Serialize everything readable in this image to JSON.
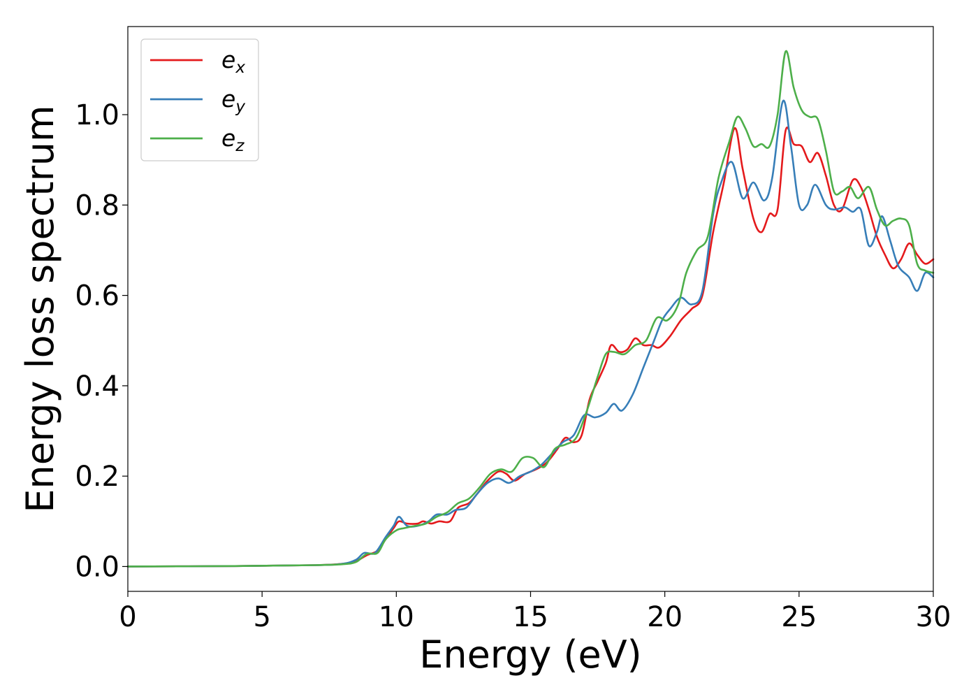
{
  "chart_data": {
    "type": "line",
    "xlabel": "Energy (eV)",
    "ylabel": "Energy loss spectrum",
    "xlim": [
      0,
      30
    ],
    "ylim": [
      -0.055,
      1.195
    ],
    "xticks": [
      0,
      5,
      10,
      15,
      20,
      25,
      30
    ],
    "xtick_labels": [
      "0",
      "5",
      "10",
      "15",
      "20",
      "25",
      "30"
    ],
    "yticks": [
      0.0,
      0.2,
      0.4,
      0.6,
      0.8,
      1.0
    ],
    "ytick_labels": [
      "0.0",
      "0.2",
      "0.4",
      "0.6",
      "0.8",
      "1.0"
    ],
    "grid": false,
    "legend": {
      "position": "upper-left"
    },
    "series": [
      {
        "name": "e",
        "subscript": "x",
        "color": "#e41a1c",
        "points": [
          [
            0,
            0
          ],
          [
            4,
            0.001
          ],
          [
            7,
            0.003
          ],
          [
            8,
            0.006
          ],
          [
            8.5,
            0.012
          ],
          [
            8.9,
            0.025
          ],
          [
            9.3,
            0.035
          ],
          [
            9.6,
            0.06
          ],
          [
            9.9,
            0.085
          ],
          [
            10.1,
            0.1
          ],
          [
            10.4,
            0.095
          ],
          [
            10.8,
            0.095
          ],
          [
            11,
            0.1
          ],
          [
            11.3,
            0.095
          ],
          [
            11.6,
            0.1
          ],
          [
            12,
            0.1
          ],
          [
            12.3,
            0.13
          ],
          [
            12.7,
            0.14
          ],
          [
            13,
            0.16
          ],
          [
            13.4,
            0.19
          ],
          [
            13.8,
            0.21
          ],
          [
            14.1,
            0.205
          ],
          [
            14.4,
            0.19
          ],
          [
            14.8,
            0.205
          ],
          [
            15.2,
            0.215
          ],
          [
            15.6,
            0.23
          ],
          [
            16,
            0.26
          ],
          [
            16.3,
            0.285
          ],
          [
            16.6,
            0.275
          ],
          [
            16.9,
            0.29
          ],
          [
            17.2,
            0.37
          ],
          [
            17.5,
            0.41
          ],
          [
            17.8,
            0.45
          ],
          [
            18,
            0.49
          ],
          [
            18.3,
            0.475
          ],
          [
            18.6,
            0.48
          ],
          [
            18.9,
            0.505
          ],
          [
            19.2,
            0.49
          ],
          [
            19.5,
            0.49
          ],
          [
            19.8,
            0.485
          ],
          [
            20.2,
            0.51
          ],
          [
            20.6,
            0.545
          ],
          [
            21,
            0.57
          ],
          [
            21.4,
            0.6
          ],
          [
            21.8,
            0.74
          ],
          [
            22.2,
            0.85
          ],
          [
            22.6,
            0.97
          ],
          [
            22.9,
            0.88
          ],
          [
            23.3,
            0.77
          ],
          [
            23.6,
            0.74
          ],
          [
            23.9,
            0.78
          ],
          [
            24.2,
            0.79
          ],
          [
            24.5,
            0.965
          ],
          [
            24.8,
            0.935
          ],
          [
            25.1,
            0.93
          ],
          [
            25.4,
            0.895
          ],
          [
            25.7,
            0.915
          ],
          [
            26,
            0.865
          ],
          [
            26.3,
            0.8
          ],
          [
            26.6,
            0.79
          ],
          [
            27,
            0.855
          ],
          [
            27.3,
            0.84
          ],
          [
            27.6,
            0.79
          ],
          [
            27.9,
            0.73
          ],
          [
            28.2,
            0.69
          ],
          [
            28.5,
            0.66
          ],
          [
            28.8,
            0.68
          ],
          [
            29.1,
            0.715
          ],
          [
            29.4,
            0.69
          ],
          [
            29.7,
            0.67
          ],
          [
            30,
            0.68
          ]
        ]
      },
      {
        "name": "e",
        "subscript": "y",
        "color": "#377eb8",
        "points": [
          [
            0,
            0
          ],
          [
            4,
            0.001
          ],
          [
            7,
            0.003
          ],
          [
            8,
            0.006
          ],
          [
            8.5,
            0.015
          ],
          [
            8.8,
            0.03
          ],
          [
            9.2,
            0.03
          ],
          [
            9.6,
            0.065
          ],
          [
            9.9,
            0.09
          ],
          [
            10.1,
            0.11
          ],
          [
            10.4,
            0.09
          ],
          [
            10.8,
            0.09
          ],
          [
            11.2,
            0.1
          ],
          [
            11.5,
            0.115
          ],
          [
            11.9,
            0.115
          ],
          [
            12.2,
            0.125
          ],
          [
            12.6,
            0.13
          ],
          [
            13,
            0.16
          ],
          [
            13.4,
            0.185
          ],
          [
            13.8,
            0.195
          ],
          [
            14.2,
            0.185
          ],
          [
            14.6,
            0.2
          ],
          [
            15,
            0.21
          ],
          [
            15.4,
            0.225
          ],
          [
            15.8,
            0.25
          ],
          [
            16.2,
            0.275
          ],
          [
            16.6,
            0.29
          ],
          [
            17,
            0.335
          ],
          [
            17.4,
            0.33
          ],
          [
            17.8,
            0.34
          ],
          [
            18.1,
            0.36
          ],
          [
            18.4,
            0.345
          ],
          [
            18.8,
            0.38
          ],
          [
            19.2,
            0.44
          ],
          [
            19.6,
            0.5
          ],
          [
            19.9,
            0.545
          ],
          [
            20.2,
            0.57
          ],
          [
            20.6,
            0.595
          ],
          [
            21,
            0.58
          ],
          [
            21.4,
            0.61
          ],
          [
            21.8,
            0.78
          ],
          [
            22.1,
            0.85
          ],
          [
            22.5,
            0.895
          ],
          [
            22.9,
            0.815
          ],
          [
            23.3,
            0.85
          ],
          [
            23.7,
            0.81
          ],
          [
            24,
            0.86
          ],
          [
            24.4,
            1.03
          ],
          [
            24.7,
            0.93
          ],
          [
            25,
            0.8
          ],
          [
            25.3,
            0.8
          ],
          [
            25.6,
            0.845
          ],
          [
            26,
            0.8
          ],
          [
            26.3,
            0.79
          ],
          [
            26.7,
            0.795
          ],
          [
            27,
            0.785
          ],
          [
            27.3,
            0.79
          ],
          [
            27.6,
            0.71
          ],
          [
            27.9,
            0.74
          ],
          [
            28.1,
            0.775
          ],
          [
            28.4,
            0.72
          ],
          [
            28.7,
            0.665
          ],
          [
            29.1,
            0.64
          ],
          [
            29.4,
            0.61
          ],
          [
            29.7,
            0.65
          ],
          [
            30,
            0.64
          ]
        ]
      },
      {
        "name": "e",
        "subscript": "z",
        "color": "#4daf4a",
        "points": [
          [
            0,
            0
          ],
          [
            4,
            0.001
          ],
          [
            7,
            0.003
          ],
          [
            8,
            0.005
          ],
          [
            8.5,
            0.01
          ],
          [
            8.9,
            0.028
          ],
          [
            9.3,
            0.03
          ],
          [
            9.6,
            0.06
          ],
          [
            10,
            0.08
          ],
          [
            10.3,
            0.085
          ],
          [
            10.7,
            0.09
          ],
          [
            11.1,
            0.095
          ],
          [
            11.5,
            0.11
          ],
          [
            11.9,
            0.12
          ],
          [
            12.3,
            0.14
          ],
          [
            12.7,
            0.15
          ],
          [
            13.1,
            0.175
          ],
          [
            13.5,
            0.205
          ],
          [
            13.9,
            0.215
          ],
          [
            14.3,
            0.21
          ],
          [
            14.7,
            0.24
          ],
          [
            15.1,
            0.24
          ],
          [
            15.5,
            0.22
          ],
          [
            15.9,
            0.26
          ],
          [
            16.3,
            0.27
          ],
          [
            16.7,
            0.285
          ],
          [
            17.1,
            0.345
          ],
          [
            17.5,
            0.42
          ],
          [
            17.8,
            0.47
          ],
          [
            18.1,
            0.475
          ],
          [
            18.5,
            0.47
          ],
          [
            18.9,
            0.49
          ],
          [
            19.3,
            0.5
          ],
          [
            19.7,
            0.55
          ],
          [
            20.1,
            0.545
          ],
          [
            20.5,
            0.58
          ],
          [
            20.8,
            0.65
          ],
          [
            21.2,
            0.7
          ],
          [
            21.6,
            0.73
          ],
          [
            22,
            0.86
          ],
          [
            22.4,
            0.94
          ],
          [
            22.7,
            0.995
          ],
          [
            23,
            0.97
          ],
          [
            23.3,
            0.93
          ],
          [
            23.6,
            0.935
          ],
          [
            23.9,
            0.93
          ],
          [
            24.2,
            1.0
          ],
          [
            24.5,
            1.14
          ],
          [
            24.8,
            1.06
          ],
          [
            25.1,
            1.01
          ],
          [
            25.4,
            0.995
          ],
          [
            25.7,
            0.99
          ],
          [
            26,
            0.92
          ],
          [
            26.3,
            0.83
          ],
          [
            26.6,
            0.83
          ],
          [
            26.9,
            0.84
          ],
          [
            27.2,
            0.815
          ],
          [
            27.6,
            0.84
          ],
          [
            27.9,
            0.79
          ],
          [
            28.2,
            0.755
          ],
          [
            28.5,
            0.765
          ],
          [
            28.8,
            0.77
          ],
          [
            29.1,
            0.755
          ],
          [
            29.4,
            0.67
          ],
          [
            29.7,
            0.655
          ],
          [
            30,
            0.65
          ]
        ]
      }
    ]
  }
}
